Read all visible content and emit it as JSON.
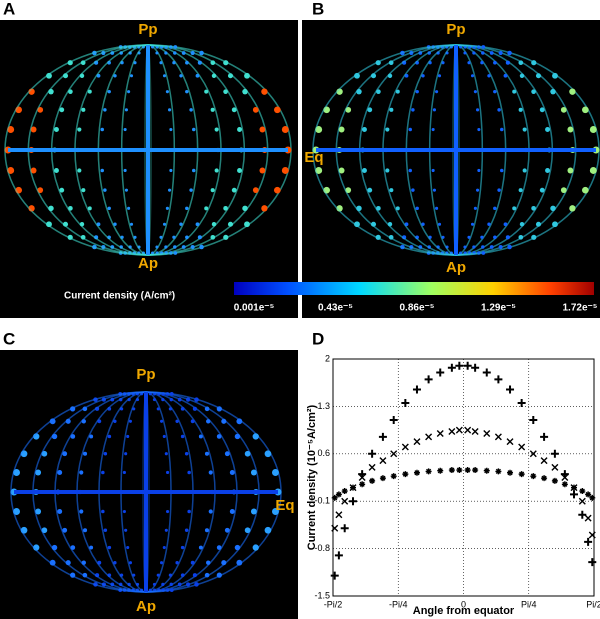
{
  "panels": [
    {
      "label": "A",
      "annotations": [
        "Pp",
        "Ap"
      ]
    },
    {
      "label": "B",
      "annotations": [
        "Pp",
        "Eq",
        "Ap"
      ]
    },
    {
      "label": "C",
      "annotations": [
        "Pp",
        "Eq",
        "Ap"
      ]
    },
    {
      "label": "D"
    }
  ],
  "colorbar": {
    "title": "Current density (A/cm²)",
    "labels": [
      "0.001e⁻⁵",
      "0.43e⁻⁵",
      "0.86e⁻⁵",
      "1.29e⁻⁵",
      "1.72e⁻⁵"
    ]
  },
  "chart_data": {
    "type": "scatter",
    "x_label": "Angle from equator",
    "y_label": "Current density (10⁻⁵A/cm²)",
    "x": [
      -1.55,
      -1.5,
      -1.43,
      -1.33,
      -1.22,
      -1.1,
      -0.97,
      -0.84,
      -0.7,
      -0.56,
      -0.42,
      -0.28,
      -0.14,
      -0.05,
      0.05,
      0.14,
      0.28,
      0.42,
      0.56,
      0.7,
      0.84,
      0.97,
      1.1,
      1.22,
      1.33,
      1.43,
      1.5,
      1.55
    ],
    "series": [
      {
        "marker": "+",
        "color": "#000000",
        "values": [
          -1.2,
          -0.9,
          -0.5,
          -0.1,
          0.3,
          0.6,
          0.85,
          1.1,
          1.35,
          1.55,
          1.7,
          1.8,
          1.87,
          1.9,
          1.9,
          1.87,
          1.8,
          1.7,
          1.55,
          1.35,
          1.1,
          0.85,
          0.6,
          0.3,
          0.0,
          -0.3,
          -0.7,
          -1.0
        ]
      },
      {
        "marker": "x",
        "color": "#000000",
        "values": [
          -0.5,
          -0.3,
          -0.1,
          0.1,
          0.25,
          0.4,
          0.5,
          0.6,
          0.7,
          0.78,
          0.85,
          0.9,
          0.93,
          0.95,
          0.95,
          0.93,
          0.9,
          0.85,
          0.78,
          0.7,
          0.6,
          0.5,
          0.4,
          0.25,
          0.1,
          -0.1,
          -0.35,
          -0.6
        ]
      },
      {
        "marker": "*",
        "color": "#000000",
        "values": [
          -0.05,
          0.0,
          0.05,
          0.1,
          0.15,
          0.2,
          0.24,
          0.27,
          0.3,
          0.32,
          0.34,
          0.35,
          0.36,
          0.36,
          0.36,
          0.36,
          0.35,
          0.34,
          0.32,
          0.3,
          0.27,
          0.24,
          0.2,
          0.15,
          0.1,
          0.05,
          0.0,
          -0.05
        ]
      }
    ],
    "xlim": [
      -1.5708,
      1.5708
    ],
    "xticks": [
      {
        "value": -1.5708,
        "label": "-Pi/2"
      },
      {
        "value": -0.7854,
        "label": "-Pi/4"
      },
      0,
      {
        "value": 0.7854,
        "label": "Pi/4"
      },
      {
        "value": 1.5708,
        "label": "Pi/2"
      }
    ],
    "ylim": [
      -1.5,
      2
    ],
    "yticks": [
      -1.5,
      -0.8,
      -0.1,
      0.6,
      1.3,
      2
    ],
    "grid": true
  }
}
